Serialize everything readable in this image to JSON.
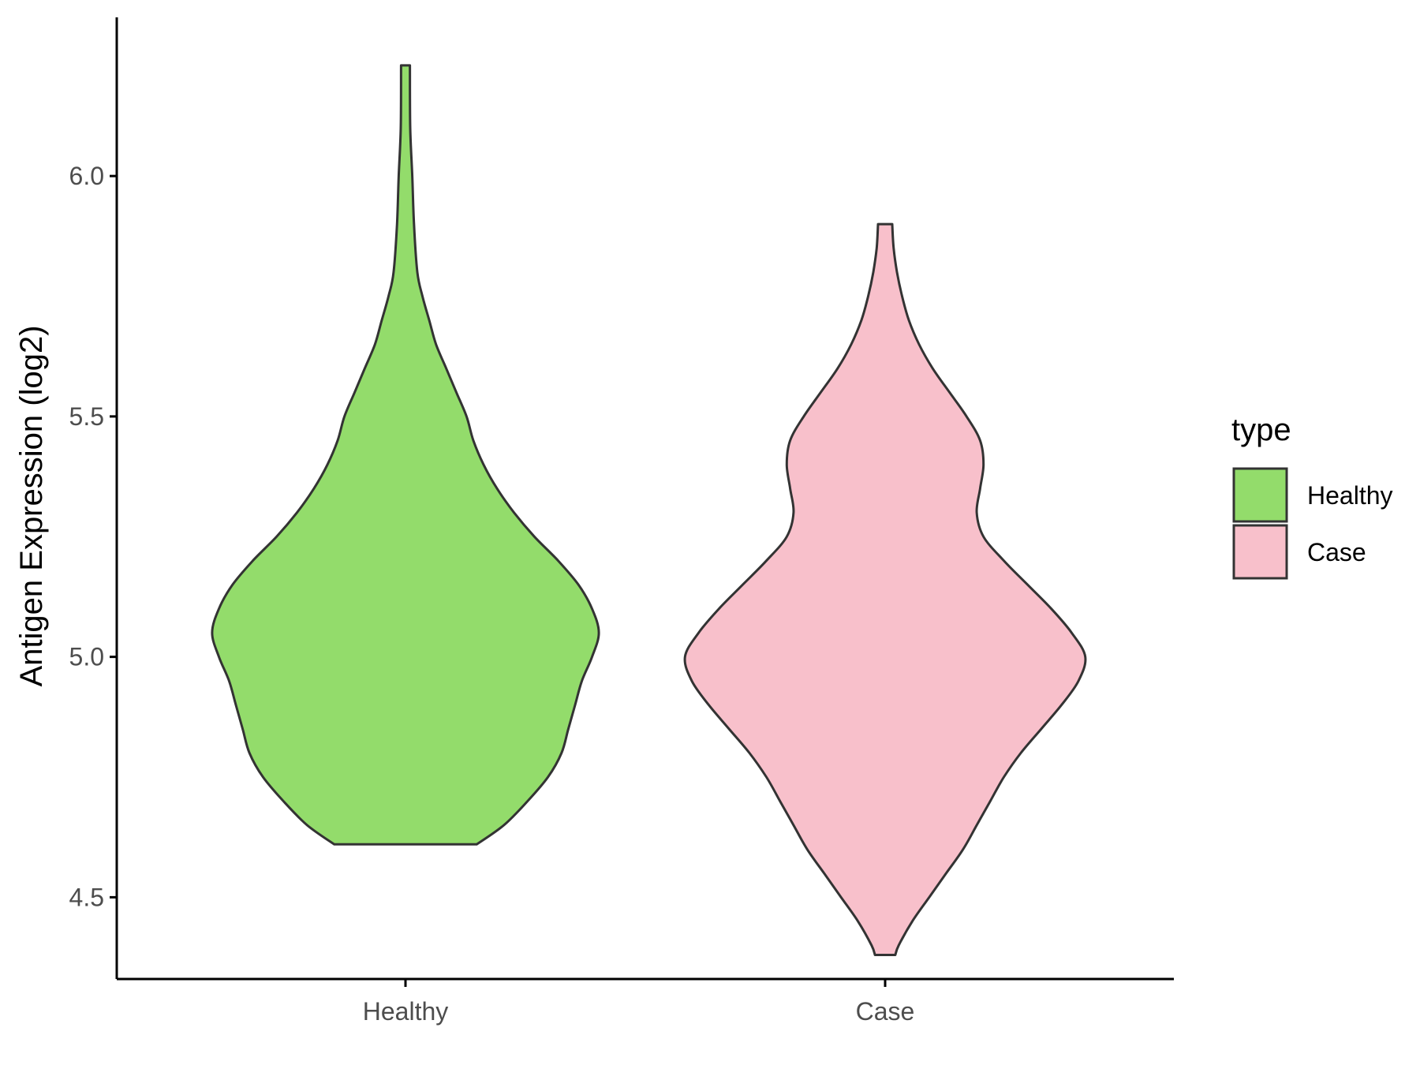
{
  "chart_data": {
    "type": "violin",
    "title": "",
    "xlabel": "",
    "ylabel": "Antigen Expression (log2)",
    "ylim": [
      4.33,
      6.33
    ],
    "y_ticks": [
      "4.5",
      "5.0",
      "5.5",
      "6.0"
    ],
    "y_tick_values": [
      4.5,
      5.0,
      5.5,
      6.0
    ],
    "categories": [
      "Healthy",
      "Case"
    ],
    "grid": false,
    "legend": {
      "title": "type",
      "placement": "right",
      "entries": [
        {
          "label": "Healthy",
          "color": "#93DC6B"
        },
        {
          "label": "Case",
          "color": "#F8C0CB"
        }
      ]
    },
    "series": [
      {
        "name": "Healthy",
        "color": "#93DC6B",
        "min": 4.61,
        "max": 6.23,
        "profile": [
          [
            4.61,
            0.21
          ],
          [
            4.65,
            0.29
          ],
          [
            4.7,
            0.36
          ],
          [
            4.75,
            0.42
          ],
          [
            4.8,
            0.46
          ],
          [
            4.85,
            0.48
          ],
          [
            4.9,
            0.5
          ],
          [
            4.95,
            0.52
          ],
          [
            5.0,
            0.55
          ],
          [
            5.05,
            0.57
          ],
          [
            5.1,
            0.55
          ],
          [
            5.15,
            0.51
          ],
          [
            5.2,
            0.45
          ],
          [
            5.25,
            0.38
          ],
          [
            5.3,
            0.32
          ],
          [
            5.35,
            0.27
          ],
          [
            5.4,
            0.23
          ],
          [
            5.45,
            0.2
          ],
          [
            5.5,
            0.18
          ],
          [
            5.55,
            0.15
          ],
          [
            5.6,
            0.12
          ],
          [
            5.65,
            0.09
          ],
          [
            5.7,
            0.07
          ],
          [
            5.75,
            0.05
          ],
          [
            5.8,
            0.035
          ],
          [
            5.9,
            0.025
          ],
          [
            6.0,
            0.02
          ],
          [
            6.1,
            0.014
          ],
          [
            6.23,
            0.013
          ]
        ]
      },
      {
        "name": "Case",
        "color": "#F8C0CB",
        "min": 4.38,
        "max": 5.9,
        "profile": [
          [
            4.38,
            0.03
          ],
          [
            4.4,
            0.04
          ],
          [
            4.45,
            0.08
          ],
          [
            4.5,
            0.13
          ],
          [
            4.55,
            0.18
          ],
          [
            4.6,
            0.23
          ],
          [
            4.65,
            0.27
          ],
          [
            4.7,
            0.31
          ],
          [
            4.75,
            0.35
          ],
          [
            4.8,
            0.4
          ],
          [
            4.85,
            0.46
          ],
          [
            4.9,
            0.52
          ],
          [
            4.95,
            0.57
          ],
          [
            5.0,
            0.59
          ],
          [
            5.05,
            0.55
          ],
          [
            5.1,
            0.49
          ],
          [
            5.15,
            0.42
          ],
          [
            5.2,
            0.35
          ],
          [
            5.25,
            0.29
          ],
          [
            5.3,
            0.27
          ],
          [
            5.35,
            0.28
          ],
          [
            5.4,
            0.29
          ],
          [
            5.45,
            0.28
          ],
          [
            5.5,
            0.24
          ],
          [
            5.55,
            0.19
          ],
          [
            5.6,
            0.14
          ],
          [
            5.65,
            0.1
          ],
          [
            5.7,
            0.07
          ],
          [
            5.75,
            0.05
          ],
          [
            5.8,
            0.035
          ],
          [
            5.85,
            0.025
          ],
          [
            5.9,
            0.021
          ]
        ]
      }
    ]
  }
}
